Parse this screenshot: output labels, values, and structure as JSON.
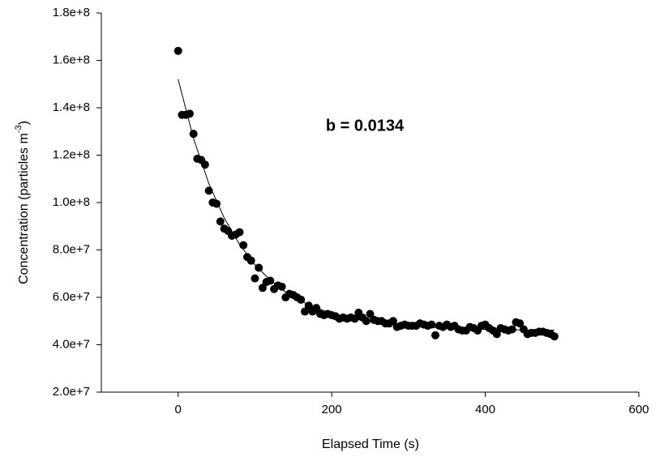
{
  "chart_data": {
    "type": "scatter",
    "annotation": "b = 0.0134",
    "x_label": "Elapsed Time (s)",
    "y_label_main": "Concentration (particles m",
    "y_label_sup": "-3",
    "y_label_end": ")",
    "xlim": [
      -100,
      600
    ],
    "xticks": [
      0,
      200,
      400,
      600
    ],
    "ylim": [
      20000000,
      180000000
    ],
    "yticks": [
      {
        "value": 20000000,
        "label": "2.0e+7"
      },
      {
        "value": 40000000,
        "label": "4.0e+7"
      },
      {
        "value": 60000000,
        "label": "6.0e+7"
      },
      {
        "value": 80000000,
        "label": "8.0e+7"
      },
      {
        "value": 100000000,
        "label": "1.0e+8"
      },
      {
        "value": 120000000,
        "label": "1.2e+8"
      },
      {
        "value": 140000000,
        "label": "1.4e+8"
      },
      {
        "value": 160000000,
        "label": "1.6e+8"
      },
      {
        "value": 180000000,
        "label": "1.8e+8"
      }
    ],
    "series": [
      {
        "color": "#000000",
        "x": [
          0,
          5,
          10,
          15,
          20,
          25,
          30,
          35,
          40,
          45,
          50,
          55,
          60,
          65,
          70,
          75,
          80,
          85,
          90,
          95,
          100,
          105,
          110,
          115,
          120,
          125,
          130,
          135,
          140,
          145,
          150,
          155,
          160,
          165,
          170,
          175,
          180,
          185,
          190,
          195,
          200,
          205,
          210,
          215,
          220,
          225,
          230,
          235,
          240,
          245,
          250,
          255,
          260,
          265,
          270,
          275,
          280,
          285,
          290,
          295,
          300,
          305,
          310,
          315,
          320,
          325,
          330,
          335,
          340,
          345,
          350,
          355,
          360,
          365,
          370,
          375,
          380,
          385,
          390,
          395,
          400,
          405,
          410,
          415,
          420,
          425,
          430,
          435,
          440,
          445,
          450,
          455,
          460,
          465,
          470,
          475,
          480,
          485,
          490
        ],
        "values": [
          164000000,
          137000000,
          137000000,
          137500000,
          129000000,
          118500000,
          118000000,
          116000000,
          105000000,
          100000000,
          99500000,
          92000000,
          89000000,
          88000000,
          86000000,
          86500000,
          87500000,
          82000000,
          77000000,
          75500000,
          68000000,
          72500000,
          64000000,
          66500000,
          67000000,
          63500000,
          65000000,
          64500000,
          60000000,
          61500000,
          61000000,
          60000000,
          59000000,
          54000000,
          56500000,
          54000000,
          55500000,
          53000000,
          52500000,
          53000000,
          52500000,
          52000000,
          51000000,
          51500000,
          51000000,
          51500000,
          51000000,
          53500000,
          51500000,
          50000000,
          53000000,
          50500000,
          50000000,
          50000000,
          49000000,
          49000000,
          50000000,
          47500000,
          48000000,
          48500000,
          48000000,
          48000000,
          48000000,
          49000000,
          48500000,
          48000000,
          48500000,
          44000000,
          48000000,
          47500000,
          48500000,
          47500000,
          48000000,
          46500000,
          46000000,
          46000000,
          47500000,
          47000000,
          46000000,
          48000000,
          48500000,
          47000000,
          46000000,
          44500000,
          47000000,
          46500000,
          46000000,
          46500000,
          49500000,
          49000000,
          46500000,
          44500000,
          45000000,
          45000000,
          45500000,
          45500000,
          45000000,
          44500000,
          43500000
        ]
      },
      {
        "type": "line",
        "color": "#000000",
        "x": [
          0,
          20,
          40,
          60,
          80,
          100,
          120,
          140,
          160,
          180,
          200,
          220,
          240,
          260,
          280,
          300,
          320,
          340,
          360,
          380,
          400,
          420,
          440,
          460,
          480,
          490
        ],
        "values": [
          152000000,
          127100000,
          108000000,
          93500000,
          82300000,
          73800000,
          67200000,
          62200000,
          58400000,
          55500000,
          53300000,
          51600000,
          50300000,
          49300000,
          48500000,
          47900000,
          47500000,
          47100000,
          46800000,
          46600000,
          46500000,
          46400000,
          46300000,
          46200000,
          46200000,
          46100000
        ]
      }
    ]
  }
}
